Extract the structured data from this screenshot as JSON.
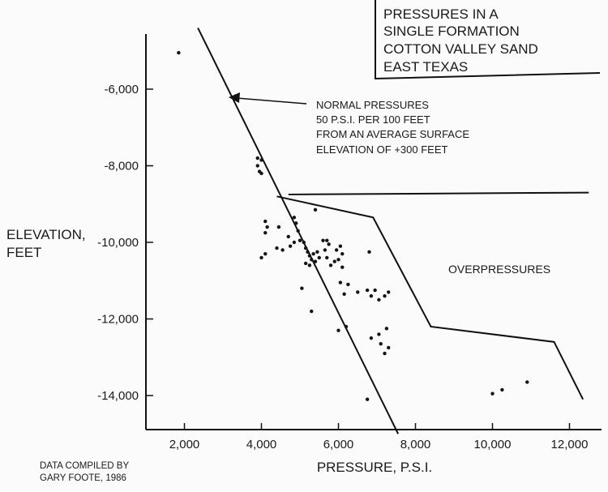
{
  "chart_data": {
    "type": "scatter",
    "title_lines": [
      "PRESSURES IN A",
      "SINGLE FORMATION",
      "COTTON VALLEY SAND",
      "EAST TEXAS"
    ],
    "xlabel": "PRESSURE, P.S.I.",
    "ylabel_lines": [
      "ELEVATION,",
      "FEET"
    ],
    "xlim": [
      1000,
      12500
    ],
    "ylim": [
      -15000,
      -4400
    ],
    "x_ticks": [
      2000,
      4000,
      6000,
      8000,
      10000,
      12000
    ],
    "x_tick_labels": [
      "2,000",
      "4,000",
      "6,000",
      "8,000",
      "10,000",
      "12,000"
    ],
    "y_ticks": [
      -6000,
      -8000,
      -10000,
      -12000,
      -14000
    ],
    "y_tick_labels": [
      "-6,000",
      "-8,000",
      "-10,000",
      "-12,000",
      "-14,000"
    ],
    "normal_pressure_line": [
      [
        2350,
        -4400
      ],
      [
        7550,
        -15000
      ]
    ],
    "overpressure_boundary": [
      [
        4400,
        -8800
      ],
      [
        6900,
        -9350
      ],
      [
        8400,
        -12200
      ],
      [
        11600,
        -12600
      ],
      [
        12350,
        -14100
      ]
    ],
    "overpressure_limit_line": [
      [
        4700,
        -8750
      ],
      [
        12500,
        -8700
      ]
    ],
    "annotation_lines": [
      "NORMAL PRESSURES",
      "50 P.S.I. PER 100 FEET",
      "FROM AN AVERAGE SURFACE",
      "ELEVATION OF +300 FEET"
    ],
    "overpressure_label": "OVERPRESSURES",
    "credit_lines": [
      "DATA COMPILED BY",
      "GARY FOOTE, 1986"
    ],
    "points": [
      [
        1850,
        -5050
      ],
      [
        3900,
        -7800
      ],
      [
        4000,
        -7850
      ],
      [
        3900,
        -8000
      ],
      [
        3950,
        -8150
      ],
      [
        4000,
        -8200
      ],
      [
        4100,
        -9450
      ],
      [
        4150,
        -9600
      ],
      [
        4100,
        -9750
      ],
      [
        4000,
        -10400
      ],
      [
        4100,
        -10300
      ],
      [
        4450,
        -9600
      ],
      [
        4400,
        -10150
      ],
      [
        4550,
        -10200
      ],
      [
        4700,
        -9850
      ],
      [
        4750,
        -10100
      ],
      [
        4850,
        -9350
      ],
      [
        4900,
        -9500
      ],
      [
        4950,
        -9700
      ],
      [
        4850,
        -10000
      ],
      [
        5000,
        -9950
      ],
      [
        5100,
        -10000
      ],
      [
        5150,
        -10150
      ],
      [
        5200,
        -10250
      ],
      [
        5250,
        -10350
      ],
      [
        5300,
        -10450
      ],
      [
        5400,
        -10500
      ],
      [
        5150,
        -10550
      ],
      [
        5250,
        -10600
      ],
      [
        5350,
        -10300
      ],
      [
        5450,
        -10250
      ],
      [
        5500,
        -10400
      ],
      [
        5600,
        -9950
      ],
      [
        5700,
        -9950
      ],
      [
        5750,
        -10050
      ],
      [
        5650,
        -10200
      ],
      [
        5700,
        -10400
      ],
      [
        5800,
        -10600
      ],
      [
        5900,
        -10500
      ],
      [
        5950,
        -10200
      ],
      [
        6050,
        -10100
      ],
      [
        6100,
        -10300
      ],
      [
        6000,
        -10450
      ],
      [
        6100,
        -10650
      ],
      [
        6050,
        -11050
      ],
      [
        6150,
        -11350
      ],
      [
        5400,
        -9150
      ],
      [
        5050,
        -11200
      ],
      [
        5300,
        -11800
      ],
      [
        6250,
        -11100
      ],
      [
        6500,
        -11300
      ],
      [
        6750,
        -11250
      ],
      [
        6850,
        -11400
      ],
      [
        6950,
        -11250
      ],
      [
        7050,
        -11500
      ],
      [
        7200,
        -11400
      ],
      [
        6800,
        -10250
      ],
      [
        7300,
        -11300
      ],
      [
        6200,
        -12200
      ],
      [
        6000,
        -12300
      ],
      [
        6850,
        -12500
      ],
      [
        7050,
        -12400
      ],
      [
        7100,
        -12650
      ],
      [
        7200,
        -12900
      ],
      [
        7250,
        -12250
      ],
      [
        7300,
        -12750
      ],
      [
        6750,
        -14100
      ],
      [
        10000,
        -13950
      ],
      [
        10250,
        -13850
      ],
      [
        10900,
        -13650
      ]
    ]
  }
}
